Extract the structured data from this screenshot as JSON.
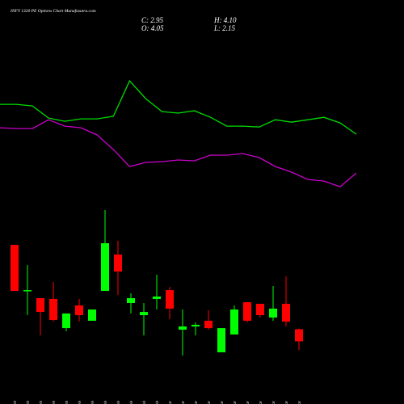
{
  "chart_data": {
    "type": "candlestick",
    "title": "INFY 1320 PE Options Chart Munafasutra.com",
    "info": [
      "C: 2.95",
      "H: 4.10",
      "O: 4.05",
      "L: 2.15"
    ],
    "categories": [
      "12 Feb",
      "13 Feb",
      "14 Feb",
      "17 Feb",
      "18 Feb",
      "19 Feb",
      "20 Feb",
      "21 Feb",
      "24 Feb",
      "25 Feb",
      "27 Feb",
      "28 Feb",
      "03 Mar",
      "04 Mar",
      "05 Mar",
      "06 Mar",
      "07 Mar",
      "10 Mar",
      "11 Mar",
      "12 Mar",
      "13 Mar",
      "17 Mar",
      "18 Mar"
    ],
    "open": [
      11.71,
      7.5,
      6.87,
      6.8,
      4.15,
      6.21,
      4.82,
      7.53,
      10.83,
      6.43,
      5.33,
      6.8,
      7.6,
      4.01,
      4.3,
      4.82,
      1.95,
      3.57,
      6.5,
      6.36,
      5.11,
      6.36,
      4.05
    ],
    "high": [
      11.71,
      9.88,
      6.87,
      8.34,
      5.48,
      6.8,
      5.84,
      14.87,
      12.08,
      7.31,
      6.43,
      9.0,
      7.9,
      5.84,
      4.67,
      5.77,
      4.15,
      6.21,
      6.5,
      6.36,
      7.97,
      8.85,
      4.1
    ],
    "low": [
      7.53,
      5.33,
      3.49,
      4.74,
      3.86,
      4.74,
      4.82,
      7.53,
      7.16,
      5.48,
      3.49,
      5.84,
      4.96,
      1.66,
      3.49,
      4.01,
      1.95,
      3.57,
      4.67,
      5.11,
      4.82,
      4.3,
      2.15
    ],
    "close": [
      7.53,
      7.6,
      5.62,
      4.89,
      5.48,
      5.33,
      5.84,
      11.86,
      9.29,
      6.87,
      5.62,
      7.02,
      5.92,
      4.3,
      4.45,
      4.15,
      4.15,
      5.84,
      4.82,
      5.33,
      5.92,
      4.74,
      2.95
    ],
    "up_color": "#00ff00",
    "down_color": "#ff0000",
    "ylim": [
      1,
      33
    ],
    "lines": [
      {
        "color": "#00dd00",
        "values": [
          24.48,
          24.48,
          24.33,
          23.23,
          22.94,
          23.16,
          23.16,
          23.39,
          26.61,
          24.99,
          23.82,
          23.68,
          23.89,
          23.3,
          22.5,
          22.5,
          22.42,
          23.08,
          22.86,
          23.08,
          23.3,
          22.79,
          21.76
        ]
      },
      {
        "color": "#cc00cc",
        "values": [
          22.35,
          22.28,
          22.28,
          23.08,
          22.5,
          22.35,
          21.69,
          20.37,
          18.83,
          19.2,
          19.27,
          19.42,
          19.34,
          19.86,
          19.86,
          20.0,
          19.64,
          18.83,
          18.32,
          17.65,
          17.51,
          16.99,
          18.24
        ]
      }
    ]
  }
}
